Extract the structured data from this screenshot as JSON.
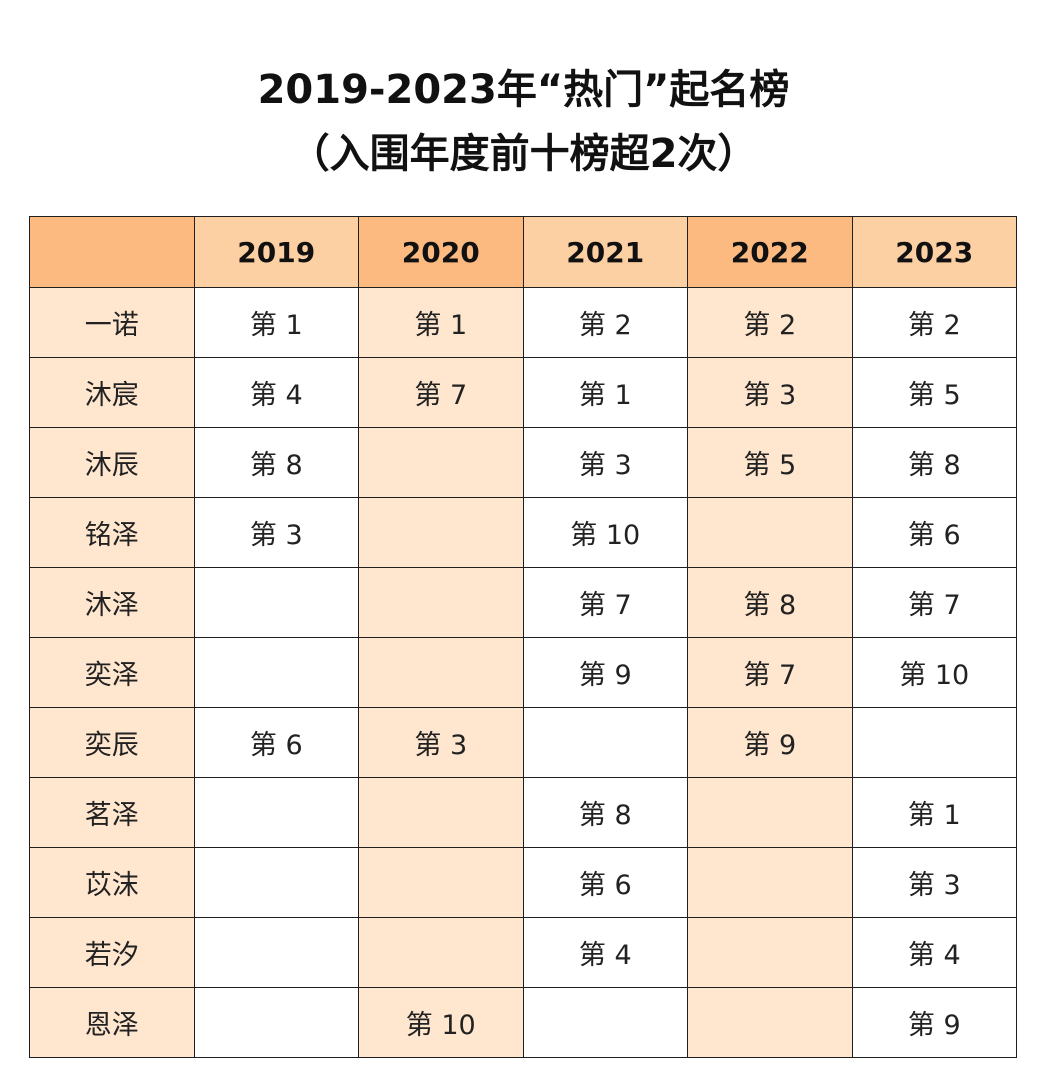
{
  "title": {
    "line1": "2019-2023年“热门”起名榜",
    "line2": "（入围年度前十榜超2次）"
  },
  "table": {
    "corner": "",
    "years": [
      "2019",
      "2020",
      "2021",
      "2022",
      "2023"
    ],
    "rows": [
      {
        "name": "一诺",
        "ranks": [
          "第 1",
          "第 1",
          "第 2",
          "第 2",
          "第 2"
        ]
      },
      {
        "name": "沐宸",
        "ranks": [
          "第 4",
          "第 7",
          "第 1",
          "第 3",
          "第 5"
        ]
      },
      {
        "name": "沐辰",
        "ranks": [
          "第 8",
          "",
          "第 3",
          "第 5",
          "第 8"
        ]
      },
      {
        "name": "铭泽",
        "ranks": [
          "第 3",
          "",
          "第 10",
          "",
          "第 6"
        ]
      },
      {
        "name": "沐泽",
        "ranks": [
          "",
          "",
          "第 7",
          "第 8",
          "第 7"
        ]
      },
      {
        "name": "奕泽",
        "ranks": [
          "",
          "",
          "第 9",
          "第 7",
          "第 10"
        ]
      },
      {
        "name": "奕辰",
        "ranks": [
          "第 6",
          "第 3",
          "",
          "第 9",
          ""
        ]
      },
      {
        "name": "茗泽",
        "ranks": [
          "",
          "",
          "第 8",
          "",
          "第 1"
        ]
      },
      {
        "name": "苡沫",
        "ranks": [
          "",
          "",
          "第 6",
          "",
          "第 3"
        ]
      },
      {
        "name": "若汐",
        "ranks": [
          "",
          "",
          "第 4",
          "",
          "第 4"
        ]
      },
      {
        "name": "恩泽",
        "ranks": [
          "",
          "第 10",
          "",
          "",
          "第 9"
        ]
      }
    ]
  },
  "colors": {
    "header_light": "#fdd0a4",
    "header_dark": "#fcb980",
    "cell_light": "#ffe6cf",
    "cell_white": "#ffffff",
    "border": "#1f1f1f"
  }
}
